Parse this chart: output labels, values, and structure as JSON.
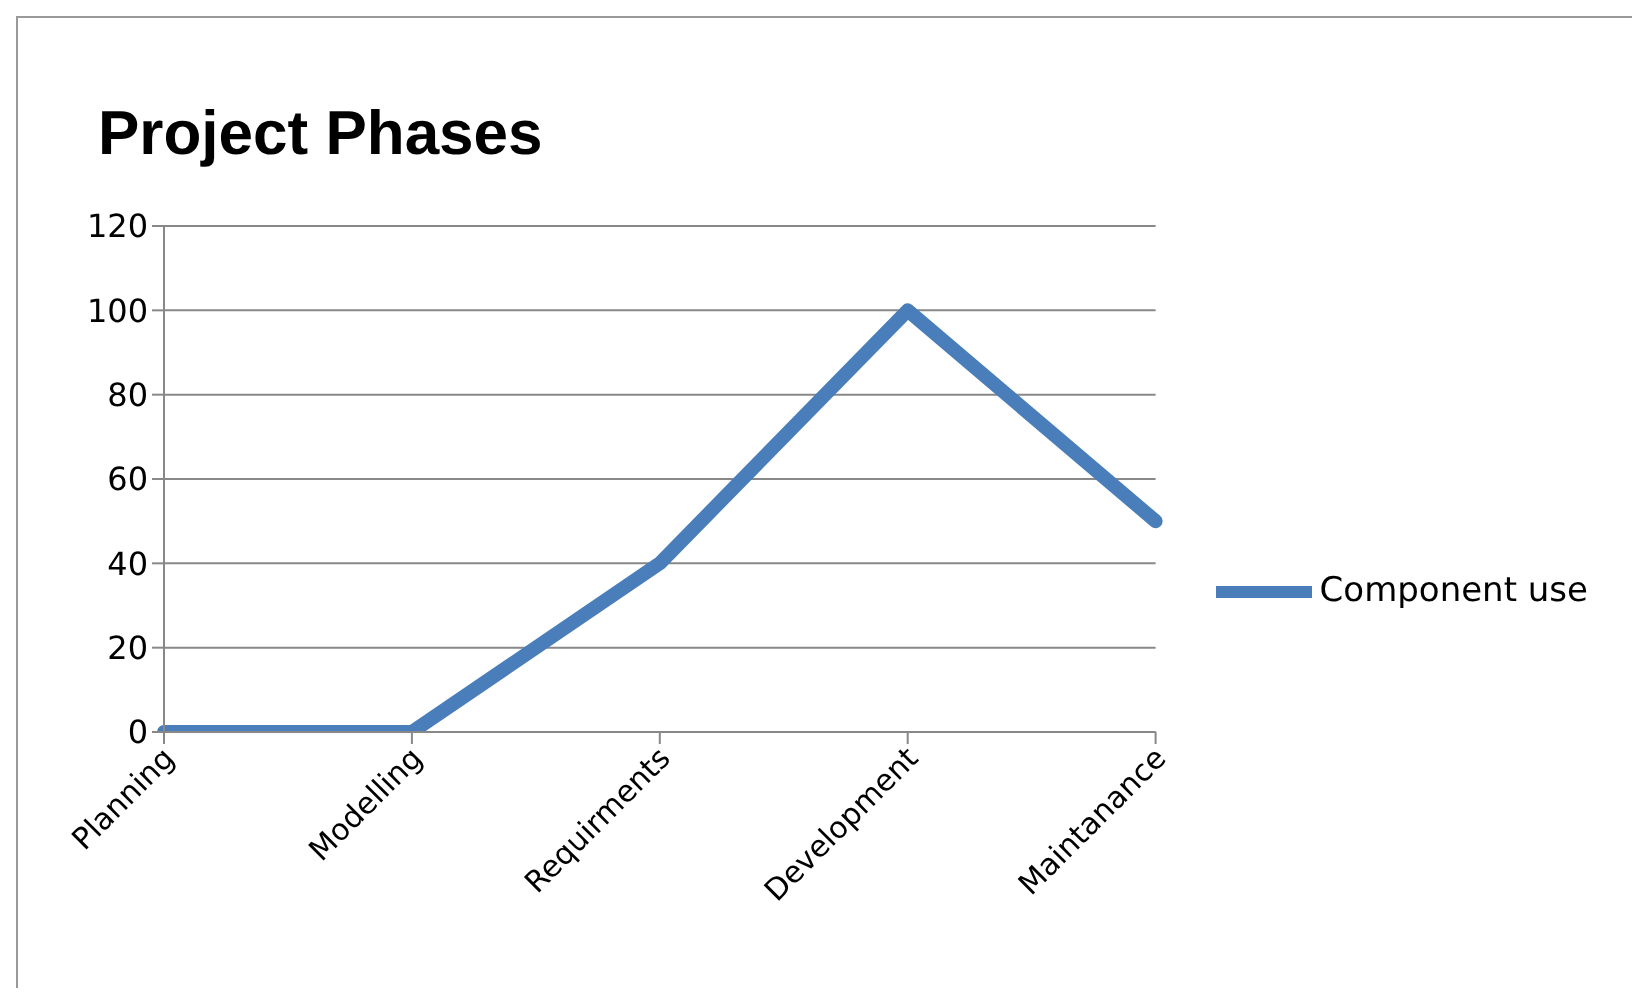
{
  "chart_data": {
    "type": "line",
    "title": "Project Phases",
    "categories": [
      "Planning",
      "Modelling",
      "Requirments",
      "Development",
      "Maintanance"
    ],
    "series": [
      {
        "name": "Component use",
        "color": "#4a7ebb",
        "values": [
          0,
          0,
          40,
          100,
          50
        ]
      }
    ],
    "ylim": [
      0,
      120
    ],
    "yticks": [
      0,
      20,
      40,
      60,
      80,
      100,
      120
    ],
    "grid": "y",
    "legend": "right",
    "marker": "none",
    "line_style": "solid"
  }
}
